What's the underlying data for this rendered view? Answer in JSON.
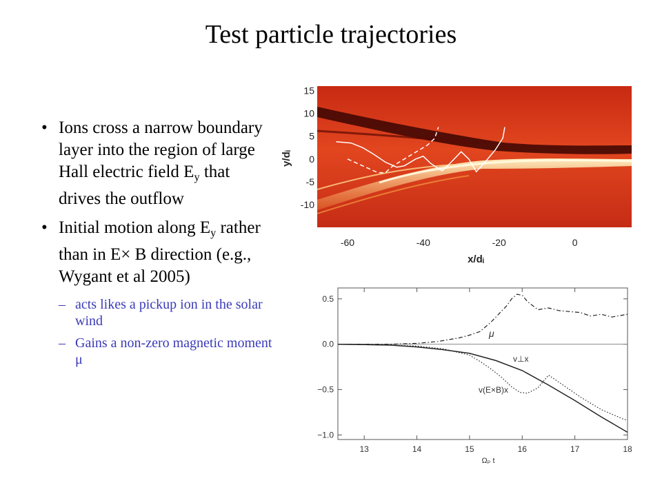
{
  "title": "Test particle trajectories",
  "bullets": {
    "b1": {
      "text": "Ions cross a narrow boundary layer into the region of large Hall electric field E",
      "sub": "y",
      "tail": " that drives the outflow"
    },
    "b2": {
      "text": "Initial motion along E",
      "sub": "y",
      "tail": " rather than in E× B direction (e.g., Wygant et al 2005)"
    },
    "subs": [
      {
        "text": "acts likes a pickup ion in the solar wind"
      },
      {
        "text": "Gains a non-zero magnetic moment μ"
      }
    ]
  },
  "bullet_char": "•",
  "dash_char": "–",
  "colors": {
    "sub_text": "#3a3ab8",
    "map_background": "#d7361b",
    "map_band": "#fff0b0"
  },
  "chart_data": [
    {
      "type": "heatmap",
      "xlabel": "x/dᵢ",
      "ylabel": "y/dᵢ",
      "xlim": [
        -68,
        15
      ],
      "ylim": [
        -15,
        16
      ],
      "xticks": [
        "-60",
        "-40",
        "-20",
        "0"
      ],
      "yticks": [
        "15",
        "10",
        "5",
        "0",
        "-5",
        "-10"
      ],
      "colormap": "red-yellow-white",
      "trajectories": [
        {
          "style": "solid",
          "points": [
            [
              -63,
              3.8
            ],
            [
              -59,
              3.5
            ],
            [
              -56,
              2.5
            ],
            [
              -53,
              1
            ],
            [
              -50,
              -0.7
            ],
            [
              -47,
              -1.8
            ],
            [
              -45,
              -1.5
            ],
            [
              -42,
              0
            ],
            [
              -40,
              0.6
            ],
            [
              -38,
              -1
            ],
            [
              -35,
              -2.6
            ],
            [
              -33,
              -1
            ],
            [
              -30,
              1.6
            ],
            [
              -28,
              0
            ],
            [
              -26,
              -2.8
            ],
            [
              -24,
              -1
            ],
            [
              -21,
              2
            ],
            [
              -19,
              4.6
            ],
            [
              -18.5,
              7
            ]
          ]
        },
        {
          "style": "dashed",
          "points": [
            [
              -60,
              0
            ],
            [
              -56,
              -1.5
            ],
            [
              -52,
              -3
            ],
            [
              -50,
              -3
            ],
            [
              -48,
              -1.5
            ],
            [
              -45,
              0
            ],
            [
              -42,
              1.5
            ],
            [
              -39,
              3
            ],
            [
              -37,
              4.5
            ],
            [
              -36,
              7
            ]
          ]
        }
      ]
    },
    {
      "type": "line",
      "xlabel": "Ωₚ t",
      "ylabel": "",
      "xlim": [
        12.5,
        18
      ],
      "ylim": [
        -1.05,
        0.62
      ],
      "xticks": [
        13,
        14,
        15,
        16,
        17,
        18
      ],
      "yticks": [
        {
          "v": 0.5,
          "label": "0.5"
        },
        {
          "v": 0.0,
          "label": "0.0"
        },
        {
          "v": -0.5,
          "label": "−0.5"
        },
        {
          "v": -1.0,
          "label": "−1.0"
        }
      ],
      "series": [
        {
          "name": "μ",
          "style": "dashdot",
          "x": [
            12.5,
            13,
            13.5,
            14,
            14.4,
            14.8,
            15,
            15.2,
            15.4,
            15.55,
            15.7,
            15.8,
            15.9,
            16,
            16.1,
            16.3,
            16.5,
            16.7,
            16.9,
            17.1,
            17.3,
            17.5,
            17.7,
            18
          ],
          "y": [
            0,
            0,
            0,
            0.01,
            0.03,
            0.07,
            0.1,
            0.14,
            0.24,
            0.33,
            0.42,
            0.5,
            0.55,
            0.54,
            0.47,
            0.38,
            0.4,
            0.37,
            0.36,
            0.35,
            0.31,
            0.33,
            0.3,
            0.33
          ]
        },
        {
          "name": "v⊥x",
          "style": "solid",
          "x": [
            12.5,
            13,
            13.5,
            14,
            14.5,
            15,
            15.5,
            16,
            16.5,
            17,
            17.5,
            18
          ],
          "y": [
            0,
            -0.005,
            -0.01,
            -0.03,
            -0.06,
            -0.1,
            -0.18,
            -0.29,
            -0.45,
            -0.62,
            -0.8,
            -0.97
          ]
        },
        {
          "name": "v(E×B)x",
          "style": "dotted",
          "x": [
            12.5,
            13,
            13.5,
            14,
            14.5,
            15,
            15.2,
            15.4,
            15.6,
            15.8,
            15.95,
            16.1,
            16.3,
            16.5,
            16.7,
            16.9,
            17.1,
            17.3,
            17.5,
            17.7,
            17.9,
            18
          ],
          "y": [
            0,
            -0.005,
            -0.01,
            -0.02,
            -0.05,
            -0.12,
            -0.19,
            -0.27,
            -0.36,
            -0.47,
            -0.53,
            -0.54,
            -0.48,
            -0.34,
            -0.42,
            -0.5,
            -0.58,
            -0.65,
            -0.72,
            -0.77,
            -0.82,
            -0.84
          ]
        }
      ],
      "hline": 0.0
    }
  ]
}
